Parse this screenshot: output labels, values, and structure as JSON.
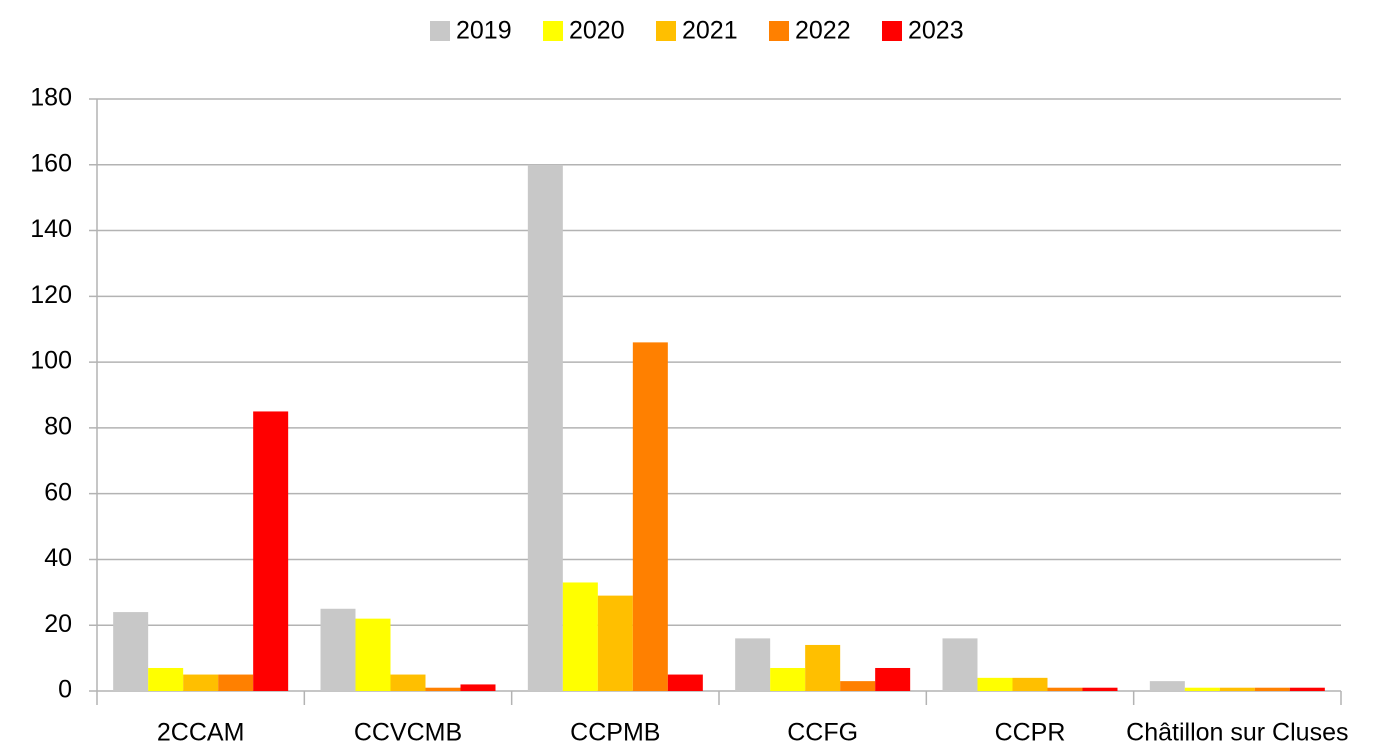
{
  "chart_data": {
    "type": "bar",
    "categories": [
      "2CCAM",
      "CCVCMB",
      "CCPMB",
      "CCFG",
      "CCPR",
      "Châtillon sur Cluses"
    ],
    "series": [
      {
        "name": "2019",
        "color": "#c8c8c8",
        "values": [
          24,
          25,
          160,
          16,
          16,
          3
        ]
      },
      {
        "name": "2020",
        "color": "#ffff00",
        "values": [
          7,
          22,
          33,
          7,
          4,
          1
        ]
      },
      {
        "name": "2021",
        "color": "#ffbf00",
        "values": [
          5,
          5,
          29,
          14,
          4,
          1
        ]
      },
      {
        "name": "2022",
        "color": "#ff8000",
        "values": [
          5,
          1,
          106,
          3,
          1,
          1
        ]
      },
      {
        "name": "2023",
        "color": "#ff0000",
        "values": [
          85,
          2,
          5,
          7,
          1,
          1
        ]
      }
    ],
    "ylim": [
      0,
      180
    ],
    "yticks": [
      0,
      20,
      40,
      60,
      80,
      100,
      120,
      140,
      160,
      180
    ],
    "grid": true,
    "legend": "top"
  }
}
